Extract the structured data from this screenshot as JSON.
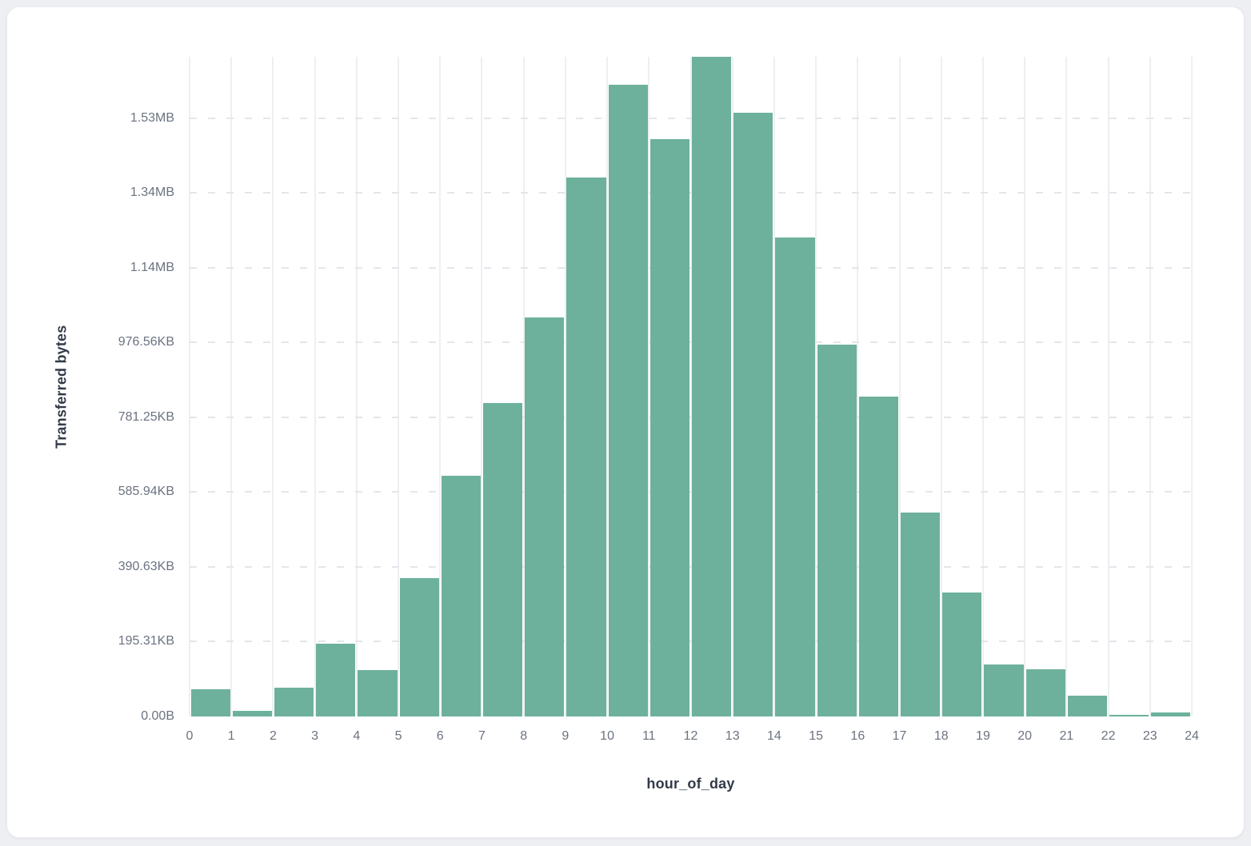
{
  "colors": {
    "page_background": "#edeff2",
    "card_background": "#ffffff",
    "card_border": "#e8eaee",
    "bar_fill": "#6db19c",
    "gridline_vertical": "#edeff2",
    "gridline_horizontal": "#e3e6ea",
    "tick_label": "#6b7380",
    "axis_title": "#323a48"
  },
  "chart_data": {
    "type": "bar",
    "title": "",
    "xlabel": "hour_of_day",
    "ylabel": "Transferred bytes",
    "categories": [
      0,
      1,
      2,
      3,
      4,
      5,
      6,
      7,
      8,
      9,
      10,
      11,
      12,
      13,
      14,
      15,
      16,
      17,
      18,
      19,
      20,
      21,
      22,
      23
    ],
    "values": [
      72000,
      15000,
      78000,
      195000,
      124000,
      369000,
      643000,
      838000,
      1067000,
      1441000,
      1690000,
      1544000,
      1764000,
      1614000,
      1280000,
      995000,
      856000,
      546000,
      331000,
      140000,
      126000,
      56000,
      5000,
      10000
    ],
    "values_unit": "bytes",
    "x_ticks": [
      "0",
      "1",
      "2",
      "3",
      "4",
      "5",
      "6",
      "7",
      "8",
      "9",
      "10",
      "11",
      "12",
      "13",
      "14",
      "15",
      "16",
      "17",
      "18",
      "19",
      "20",
      "21",
      "22",
      "23",
      "24"
    ],
    "y_ticks": [
      {
        "label": "0.00B",
        "bytes": 0
      },
      {
        "label": "195.31KB",
        "bytes": 200000
      },
      {
        "label": "390.63KB",
        "bytes": 400000
      },
      {
        "label": "585.94KB",
        "bytes": 600000
      },
      {
        "label": "781.25KB",
        "bytes": 800000
      },
      {
        "label": "976.56KB",
        "bytes": 1000000
      },
      {
        "label": "1.14MB",
        "bytes": 1200000
      },
      {
        "label": "1.34MB",
        "bytes": 1400000
      },
      {
        "label": "1.53MB",
        "bytes": 1600000
      }
    ],
    "ylim": [
      0,
      1764000
    ],
    "y_max_bytes": 1764000,
    "grid": true,
    "legend_position": "none"
  }
}
